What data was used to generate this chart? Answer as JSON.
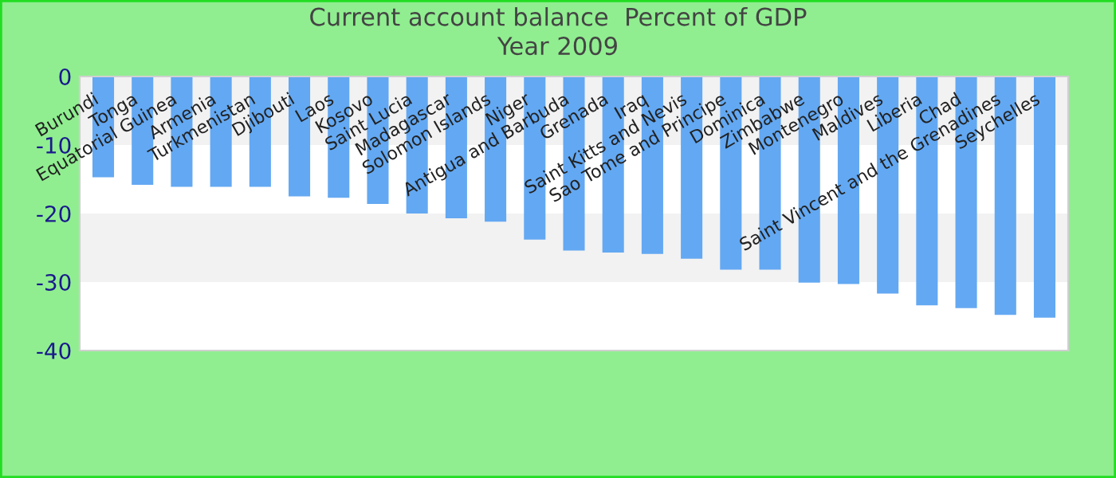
{
  "chart_data": {
    "type": "bar",
    "title": "Current account balance  Percent of GDP\nYear 2009",
    "categories": [
      "Burundi",
      "Tonga",
      "Equatorial Guinea",
      "Armenia",
      "Turkmenistan",
      "Djibouti",
      "Laos",
      "Kosovo",
      "Saint Lucia",
      "Madagascar",
      "Solomon Islands",
      "Niger",
      "Antigua and Barbuda",
      "Grenada",
      "Iraq",
      "Saint Kitts and Nevis",
      "Sao Tome and Principe",
      "Dominica",
      "Zimbabwe",
      "Montenegro",
      "Maldives",
      "Liberia",
      "Chad",
      "Saint Vincent and the Grenadines",
      "Seychelles"
    ],
    "values": [
      -14.7,
      -15.8,
      -16.1,
      -16.1,
      -16.1,
      -17.5,
      -17.7,
      -18.6,
      -20.0,
      -20.7,
      -21.2,
      -23.8,
      -25.4,
      -25.7,
      -25.9,
      -26.6,
      -28.2,
      -28.2,
      -30.1,
      -30.3,
      -31.7,
      -33.4,
      -33.8,
      -34.8,
      -35.2
    ],
    "color": "#63a8f2",
    "ylim": [
      -40,
      0
    ],
    "yticks": [
      -40,
      -30,
      -20,
      -10,
      0
    ],
    "bands": [
      {
        "axis": "y",
        "from": 0,
        "to": -10,
        "color": "#f2f2f2"
      },
      {
        "axis": "y",
        "from": -20,
        "to": -30,
        "color": "#f2f2f2"
      }
    ],
    "grid": false,
    "legend": false
  }
}
